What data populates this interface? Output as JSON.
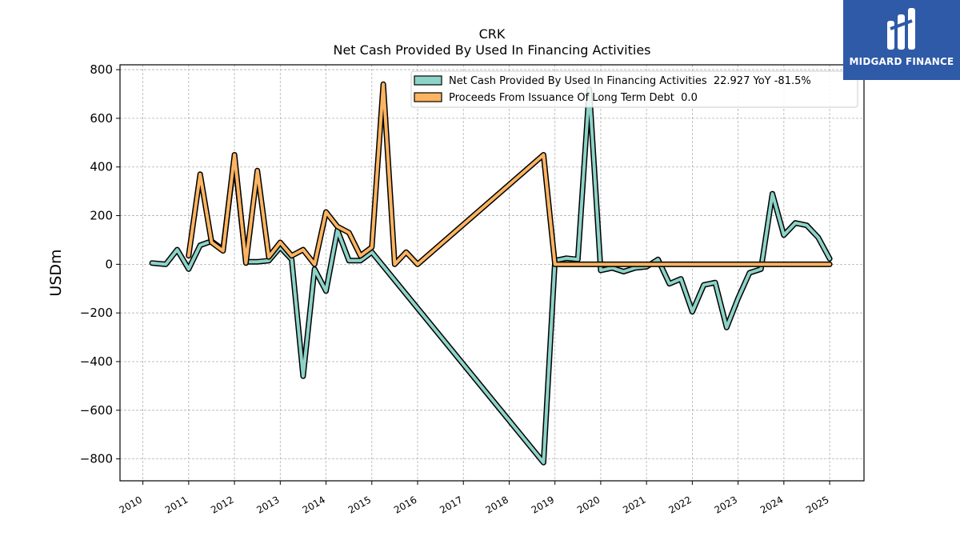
{
  "brand": {
    "name": "MIDGARD FINANCE",
    "logo_icon": "midgard-logo-icon",
    "bg_color": "#2e5aa8"
  },
  "chart_data": {
    "type": "line",
    "title": "CRK",
    "subtitle": "Net Cash Provided By Used In Financing Activities",
    "xlabel": "",
    "ylabel": "USDm",
    "xlim": [
      2009.5,
      2025.75
    ],
    "ylim": [
      -890,
      820
    ],
    "yticks": [
      -800,
      -600,
      -400,
      -200,
      0,
      200,
      400,
      600,
      800
    ],
    "ytick_labels": [
      "−800",
      "−600",
      "−400",
      "−200",
      "0",
      "200",
      "400",
      "600",
      "800"
    ],
    "xticks": [
      2010,
      2011,
      2012,
      2013,
      2014,
      2015,
      2016,
      2017,
      2018,
      2019,
      2020,
      2021,
      2022,
      2023,
      2024,
      2025
    ],
    "xtick_labels": [
      "2010",
      "2011",
      "2012",
      "2013",
      "2014",
      "2015",
      "2016",
      "2017",
      "2018",
      "2019",
      "2020",
      "2021",
      "2022",
      "2023",
      "2024",
      "2025"
    ],
    "grid": true,
    "legend_position": "top-right",
    "series": [
      {
        "name": "Net Cash Provided By Used In Financing Activities  22.927 YoY -81.5%",
        "color": "#8dd3c7",
        "points": [
          [
            2010.2,
            5
          ],
          [
            2010.5,
            0
          ],
          [
            2010.75,
            60
          ],
          [
            2011.0,
            -20
          ],
          [
            2011.25,
            78
          ],
          [
            2011.5,
            95
          ],
          [
            2011.75,
            60
          ],
          [
            2012.0,
            440
          ],
          [
            2012.25,
            10
          ],
          [
            2012.5,
            10
          ],
          [
            2012.75,
            15
          ],
          [
            2013.0,
            70
          ],
          [
            2013.25,
            20
          ],
          [
            2013.5,
            -460
          ],
          [
            2013.75,
            -20
          ],
          [
            2014.0,
            -110
          ],
          [
            2014.25,
            140
          ],
          [
            2014.5,
            15
          ],
          [
            2014.75,
            15
          ],
          [
            2015.0,
            50
          ],
          [
            2018.75,
            -815
          ],
          [
            2019.0,
            15
          ],
          [
            2019.25,
            25
          ],
          [
            2019.5,
            20
          ],
          [
            2019.75,
            720
          ],
          [
            2020.0,
            -25
          ],
          [
            2020.25,
            -15
          ],
          [
            2020.5,
            -30
          ],
          [
            2020.75,
            -15
          ],
          [
            2021.0,
            -10
          ],
          [
            2021.25,
            20
          ],
          [
            2021.5,
            -80
          ],
          [
            2021.75,
            -60
          ],
          [
            2022.0,
            -195
          ],
          [
            2022.25,
            -85
          ],
          [
            2022.5,
            -75
          ],
          [
            2022.75,
            -260
          ],
          [
            2023.0,
            -140
          ],
          [
            2023.25,
            -35
          ],
          [
            2023.5,
            -20
          ],
          [
            2023.75,
            290
          ],
          [
            2024.0,
            120
          ],
          [
            2024.25,
            170
          ],
          [
            2024.5,
            160
          ],
          [
            2024.75,
            110
          ],
          [
            2025.0,
            22.927
          ]
        ]
      },
      {
        "name": "Proceeds From Issuance Of Long Term Debt  0.0",
        "color": "#fdb462",
        "points": [
          [
            2011.0,
            35
          ],
          [
            2011.25,
            370
          ],
          [
            2011.5,
            90
          ],
          [
            2011.75,
            55
          ],
          [
            2012.0,
            450
          ],
          [
            2012.25,
            5
          ],
          [
            2012.5,
            385
          ],
          [
            2012.75,
            30
          ],
          [
            2013.0,
            90
          ],
          [
            2013.25,
            35
          ],
          [
            2013.5,
            60
          ],
          [
            2013.75,
            0
          ],
          [
            2014.0,
            215
          ],
          [
            2014.25,
            155
          ],
          [
            2014.5,
            130
          ],
          [
            2014.75,
            35
          ],
          [
            2015.0,
            70
          ],
          [
            2015.25,
            740
          ],
          [
            2015.5,
            0
          ],
          [
            2015.75,
            50
          ],
          [
            2016.0,
            0
          ],
          [
            2018.75,
            450
          ],
          [
            2019.0,
            0
          ],
          [
            2025.0,
            0
          ]
        ]
      }
    ]
  }
}
